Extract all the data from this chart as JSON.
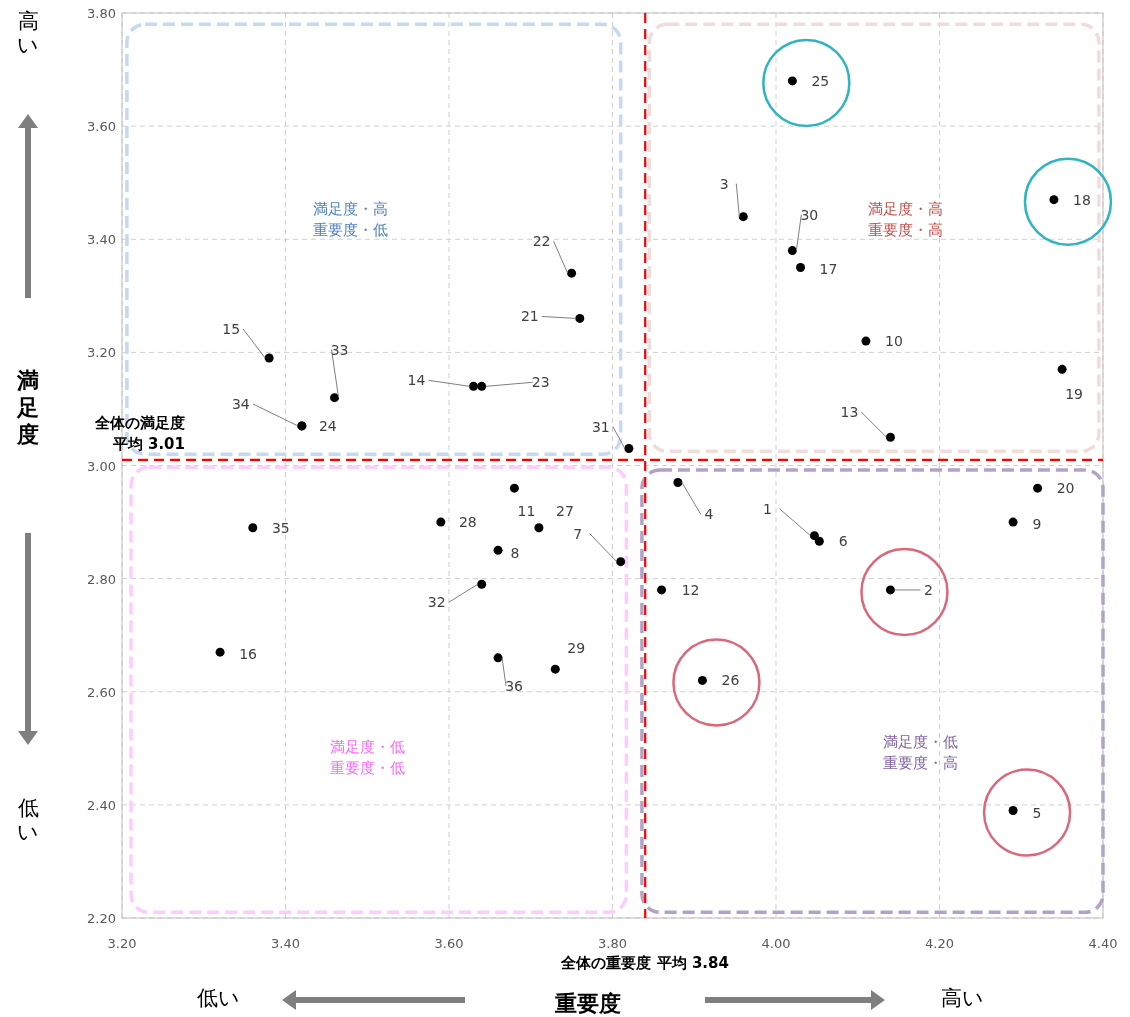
{
  "chart_data": {
    "type": "scatter",
    "xlabel": "重要度",
    "ylabel": "満足度",
    "xlim": [
      3.2,
      4.4
    ],
    "ylim": [
      2.2,
      3.8
    ],
    "xticks": [
      {
        "value": 3.2,
        "label": "3.20"
      },
      {
        "value": 3.4,
        "label": "3.40"
      },
      {
        "value": 3.6,
        "label": "3.60"
      },
      {
        "value": 3.8,
        "label": "3.80"
      },
      {
        "value": 4.0,
        "label": "4.00"
      },
      {
        "value": 4.2,
        "label": "4.20"
      },
      {
        "value": 4.4,
        "label": "4.40"
      }
    ],
    "yticks": [
      {
        "value": 2.2,
        "label": "2.20"
      },
      {
        "value": 2.4,
        "label": "2.40"
      },
      {
        "value": 2.6,
        "label": "2.60"
      },
      {
        "value": 2.8,
        "label": "2.80"
      },
      {
        "value": 3.0,
        "label": "3.00"
      },
      {
        "value": 3.2,
        "label": "3.20"
      },
      {
        "value": 3.4,
        "label": "3.40"
      },
      {
        "value": 3.6,
        "label": "3.60"
      },
      {
        "value": 3.8,
        "label": "3.80"
      }
    ],
    "grid": true,
    "marker": "circle",
    "series": [
      {
        "color": "#000000",
        "x": [
          4.047,
          4.14,
          3.96,
          3.88,
          4.29,
          4.053,
          3.81,
          3.66,
          4.29,
          4.11,
          3.68,
          3.86,
          4.14,
          3.63,
          3.38,
          3.32,
          4.03,
          4.34,
          4.35,
          4.32,
          3.76,
          3.75,
          3.64,
          3.42,
          4.02,
          3.91,
          3.71,
          3.59,
          3.73,
          4.02,
          3.82,
          3.64,
          3.46,
          3.42,
          3.36,
          3.66
        ],
        "values": [
          2.876,
          2.78,
          3.44,
          2.97,
          2.39,
          2.866,
          2.83,
          2.85,
          2.9,
          3.22,
          2.96,
          2.78,
          3.05,
          3.14,
          3.19,
          2.67,
          3.35,
          3.47,
          3.17,
          2.96,
          3.26,
          3.34,
          3.14,
          3.07,
          3.68,
          2.62,
          2.89,
          2.9,
          2.64,
          3.38,
          3.03,
          2.79,
          3.12,
          3.07,
          2.89,
          2.66
        ]
      }
    ],
    "ref_lines": [
      {
        "axis": "x",
        "value": 3.84,
        "label": "全体の重要度 平均 3.84",
        "color": "#ff0000",
        "line_style": "dashed"
      },
      {
        "axis": "y",
        "value": 3.01,
        "label": "全体の満足度平均 3.01",
        "color": "#ff0000",
        "line_style": "dashed"
      }
    ],
    "annotations": [
      {
        "text": "1",
        "x": 4.047,
        "y": 2.876
      },
      {
        "text": "2",
        "x": 4.14,
        "y": 2.78
      },
      {
        "text": "3",
        "x": 3.96,
        "y": 3.44
      },
      {
        "text": "4",
        "x": 3.88,
        "y": 2.97
      },
      {
        "text": "5",
        "x": 4.29,
        "y": 2.39
      },
      {
        "text": "6",
        "x": 4.053,
        "y": 2.866
      },
      {
        "text": "7",
        "x": 3.81,
        "y": 2.83
      },
      {
        "text": "8",
        "x": 3.66,
        "y": 2.85
      },
      {
        "text": "9",
        "x": 4.29,
        "y": 2.9
      },
      {
        "text": "10",
        "x": 4.11,
        "y": 3.22
      },
      {
        "text": "11",
        "x": 3.68,
        "y": 2.96
      },
      {
        "text": "12",
        "x": 3.86,
        "y": 2.78
      },
      {
        "text": "13",
        "x": 4.14,
        "y": 3.05
      },
      {
        "text": "14",
        "x": 3.63,
        "y": 3.14
      },
      {
        "text": "15",
        "x": 3.38,
        "y": 3.19
      },
      {
        "text": "16",
        "x": 3.32,
        "y": 2.67
      },
      {
        "text": "17",
        "x": 4.03,
        "y": 3.35
      },
      {
        "text": "18",
        "x": 4.34,
        "y": 3.47
      },
      {
        "text": "19",
        "x": 4.35,
        "y": 3.17
      },
      {
        "text": "20",
        "x": 4.32,
        "y": 2.96
      },
      {
        "text": "21",
        "x": 3.76,
        "y": 3.26
      },
      {
        "text": "22",
        "x": 3.75,
        "y": 3.34
      },
      {
        "text": "23",
        "x": 3.64,
        "y": 3.14
      },
      {
        "text": "24",
        "x": 3.42,
        "y": 3.07
      },
      {
        "text": "25",
        "x": 4.02,
        "y": 3.68
      },
      {
        "text": "26",
        "x": 3.91,
        "y": 2.62
      },
      {
        "text": "27",
        "x": 3.71,
        "y": 2.89
      },
      {
        "text": "28",
        "x": 3.59,
        "y": 2.9
      },
      {
        "text": "29",
        "x": 3.73,
        "y": 2.64
      },
      {
        "text": "30",
        "x": 4.02,
        "y": 3.38
      },
      {
        "text": "31",
        "x": 3.82,
        "y": 3.03
      },
      {
        "text": "32",
        "x": 3.64,
        "y": 2.79
      },
      {
        "text": "33",
        "x": 3.46,
        "y": 3.12
      },
      {
        "text": "34",
        "x": 3.42,
        "y": 3.07
      },
      {
        "text": "35",
        "x": 3.36,
        "y": 2.89
      },
      {
        "text": "36",
        "x": 3.66,
        "y": 2.66
      },
      "満足度・高重要度・低",
      "満足度・高重要度・高",
      "満足度・低重要度・低",
      "満足度・低重要度・高",
      "高い",
      "低い",
      "低い",
      "高い"
    ]
  }
}
